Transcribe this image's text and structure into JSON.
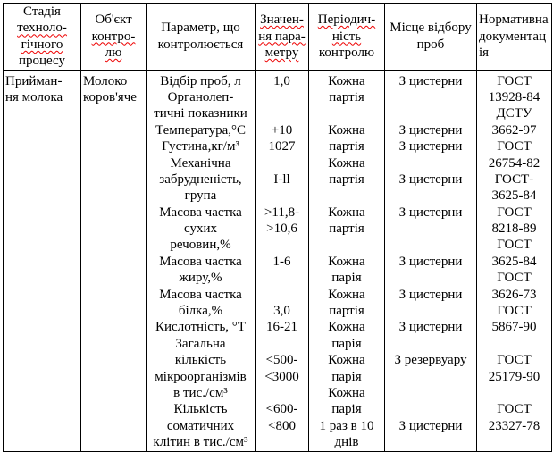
{
  "table": {
    "headers": [
      {
        "lines": [
          "Стадія",
          "техноло-",
          "гічного",
          "процесу"
        ],
        "align": "center"
      },
      {
        "lines": [
          "Об'єкт",
          "контро-",
          "лю"
        ],
        "align": "center"
      },
      {
        "lines": [
          "Параметр, що",
          "контролюється"
        ],
        "align": "center"
      },
      {
        "lines": [
          "Значен-",
          "ня пара-",
          "метру"
        ],
        "align": "center"
      },
      {
        "lines": [
          "Періодич-",
          "ність",
          "контролю"
        ],
        "align": "center"
      },
      {
        "lines": [
          "Місце відбору",
          "проб"
        ],
        "align": "center"
      },
      {
        "lines": [
          "Нормативна",
          "документац",
          "ія"
        ],
        "align": "left"
      }
    ],
    "columns": [
      [
        "Прийман-",
        "ня молока"
      ],
      [
        "Молоко",
        "коров'яче"
      ],
      [
        "Відбір проб, л",
        "Органолеп-",
        "тичні показники",
        "Температура,°С",
        "Густина,кг/м³",
        "Механічна",
        "забрудненість,",
        "група",
        "Масова частка",
        "сухих",
        "речовин,%",
        "Масова частка",
        "жиру,%",
        "Масова частка",
        "білка,%",
        "Кислотність, °Т",
        "Загальна",
        "кількість",
        "мікроорганізмів",
        "в тис./см³",
        "Кількість",
        "соматичних",
        "клітин в тис./см³"
      ],
      [
        "1,0",
        "",
        "",
        "+10",
        "1027",
        "",
        "I-ll",
        "",
        ">11,8-",
        ">10,6",
        "",
        "1-6",
        "",
        "",
        "3,0",
        "16-21",
        "",
        "<500-",
        "<3000",
        "",
        "<600-",
        "<800",
        ""
      ],
      [
        "Кожна",
        "партія",
        "",
        "Кожна",
        "партія",
        "Кожна",
        "партія",
        "",
        "Кожна",
        "партія",
        "",
        "Кожна",
        "парія",
        "Кожна",
        "партія",
        "Кожна",
        "парія",
        "Кожна",
        "парія",
        "Кожна",
        "парія",
        "1 раз в 10",
        "днів"
      ],
      [
        "З цистерни",
        "",
        "",
        "З цистерни",
        "З цистерни",
        "",
        "З цистерни",
        "",
        "З цистерни",
        "",
        "",
        "З цистерни",
        "",
        "З цистерни",
        "",
        "З цистерни",
        "",
        "З резервуару",
        "",
        "",
        "",
        "З цистерни",
        ""
      ],
      [
        "ГОСТ",
        "13928-84",
        "ДСТУ",
        "3662-97",
        "ГОСТ",
        "26754-82",
        "ГОСТ-",
        "3625-84",
        "ГОСТ",
        "8218-89",
        "ГОСТ",
        "3625-84",
        "ГОСТ",
        "3626-73",
        "ГОСТ",
        "5867-90",
        "",
        "ГОСТ",
        "25179-90",
        "",
        "ГОСТ",
        "23327-78",
        ""
      ]
    ],
    "column_align": [
      "left",
      "left",
      "center",
      "center",
      "center",
      "center",
      "center"
    ]
  }
}
